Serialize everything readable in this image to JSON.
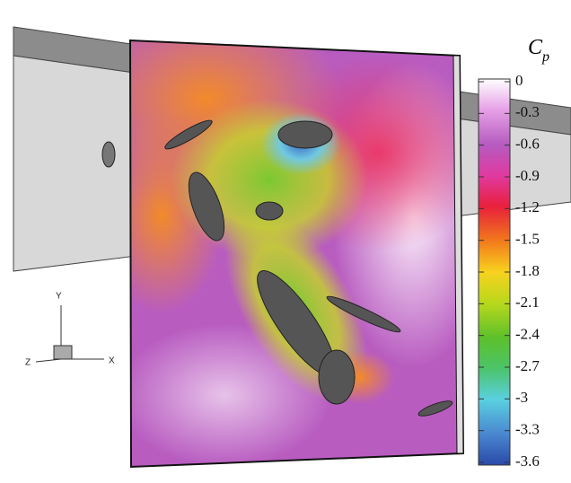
{
  "colorbar": {
    "title": {
      "symbol": "C",
      "subscript": "p"
    },
    "range": [
      -3.6,
      0
    ],
    "ticks": [
      0,
      -0.3,
      -0.6,
      -0.9,
      -1.2,
      -1.5,
      -1.8,
      -2.1,
      -2.4,
      -2.7,
      -3,
      -3.3,
      -3.6
    ]
  },
  "axes_triad": {
    "y": "Y",
    "z": "Z",
    "x": "X"
  }
}
